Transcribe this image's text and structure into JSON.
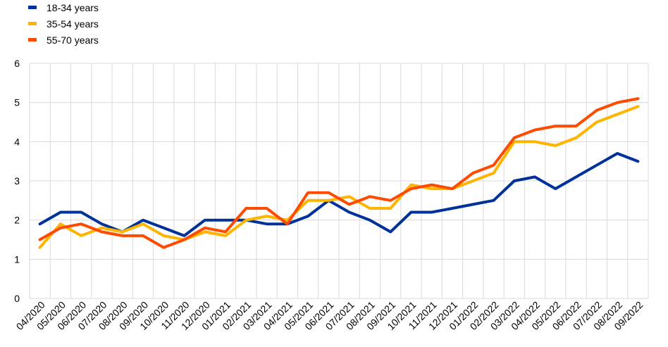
{
  "chart_data": {
    "type": "line",
    "x": [
      "04/2020",
      "05/2020",
      "06/2020",
      "07/2020",
      "08/2020",
      "09/2020",
      "10/2020",
      "11/2020",
      "12/2020",
      "01/2021",
      "02/2021",
      "03/2021",
      "04/2021",
      "05/2021",
      "06/2021",
      "07/2021",
      "08/2021",
      "09/2021",
      "10/2021",
      "11/2021",
      "12/2021",
      "01/2022",
      "02/2022",
      "03/2022",
      "04/2022",
      "05/2022",
      "06/2022",
      "07/2022",
      "08/2022",
      "09/2022"
    ],
    "series": [
      {
        "name": "18-34 years",
        "color": "#003299",
        "values": [
          1.9,
          2.2,
          2.2,
          1.9,
          1.7,
          2.0,
          1.8,
          1.6,
          2.0,
          2.0,
          2.0,
          1.9,
          1.9,
          2.1,
          2.5,
          2.2,
          2.0,
          1.7,
          2.2,
          2.2,
          2.3,
          2.4,
          2.5,
          3.0,
          3.1,
          2.8,
          3.1,
          3.4,
          3.7,
          3.5
        ]
      },
      {
        "name": "35-54 years",
        "color": "#FFB400",
        "values": [
          1.3,
          1.9,
          1.6,
          1.8,
          1.7,
          1.9,
          1.6,
          1.5,
          1.7,
          1.6,
          2.0,
          2.1,
          2.0,
          2.5,
          2.5,
          2.6,
          2.3,
          2.3,
          2.9,
          2.8,
          2.8,
          3.0,
          3.2,
          4.0,
          4.0,
          3.9,
          4.1,
          4.5,
          4.7,
          4.9
        ]
      },
      {
        "name": "55-70 years",
        "color": "#FF4B00",
        "values": [
          1.5,
          1.8,
          1.9,
          1.7,
          1.6,
          1.6,
          1.3,
          1.5,
          1.8,
          1.7,
          2.3,
          2.3,
          1.9,
          2.7,
          2.7,
          2.4,
          2.6,
          2.5,
          2.8,
          2.9,
          2.8,
          3.2,
          3.4,
          4.1,
          4.3,
          4.4,
          4.4,
          4.8,
          5.0,
          5.1
        ]
      }
    ],
    "y_ticks": [
      "0",
      "1",
      "2",
      "3",
      "4",
      "5",
      "6"
    ],
    "ylim": [
      0,
      6
    ],
    "grid": true,
    "legend_position": "top-left"
  }
}
